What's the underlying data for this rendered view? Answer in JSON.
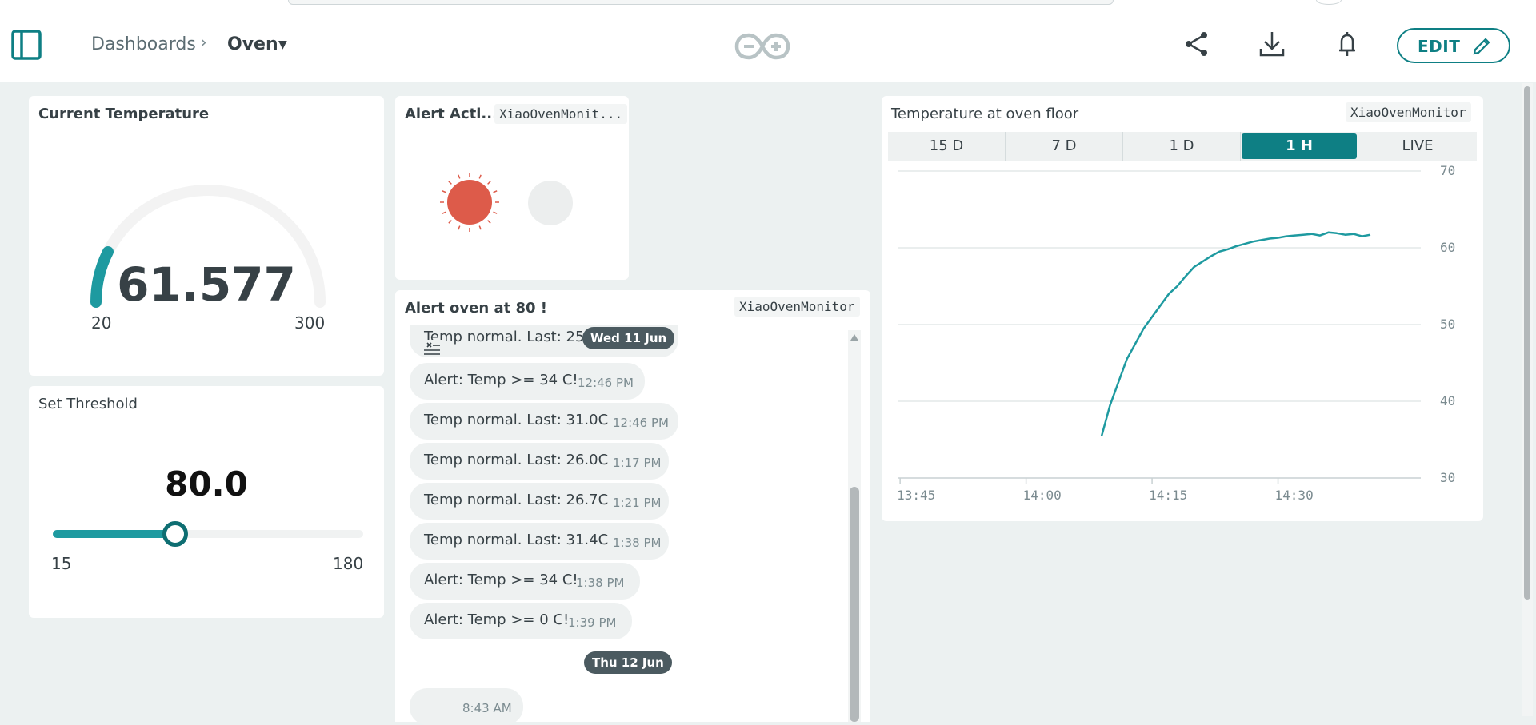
{
  "header": {
    "breadcrumb_root": "Dashboards",
    "breadcrumb_current": "Oven",
    "edit_label": "EDIT",
    "accent_color": "#0e7f84"
  },
  "icons": [
    "sidebar-toggle-icon",
    "arduino-logo-icon",
    "share-icon",
    "download-icon",
    "notification-bell-icon",
    "pencil-icon",
    "scroll-up-icon",
    "filter-messages-icon"
  ],
  "gauge": {
    "title": "Current Temperature",
    "value": "61.577",
    "min": "20",
    "max": "300",
    "value_num": 61.577,
    "min_num": 20,
    "max_num": 300
  },
  "alert_widget": {
    "title": "Alert Acti...",
    "device": "XiaoOvenMonit...",
    "active_color": "#dd5b4a"
  },
  "threshold": {
    "title": "Set Threshold",
    "value": "80.0",
    "min": "15",
    "max": "180",
    "value_num": 80,
    "min_num": 15,
    "max_num": 180
  },
  "messenger": {
    "title": "Alert oven at 80 !",
    "device": "XiaoOvenMonitor",
    "date1": "Wed 11 Jun",
    "date2": "Thu 12 Jun",
    "messages": [
      {
        "text": "Temp normal. Last: 25.",
        "time": ""
      },
      {
        "text": "Alert: Temp >= 34 C!",
        "time": "12:46 PM"
      },
      {
        "text": "Temp normal. Last: 31.0C",
        "time": "12:46 PM"
      },
      {
        "text": "Temp normal. Last: 26.0C",
        "time": "1:17 PM"
      },
      {
        "text": "Temp normal. Last: 26.7C",
        "time": "1:21 PM"
      },
      {
        "text": "Temp normal. Last: 31.4C",
        "time": "1:38 PM"
      },
      {
        "text": "Alert: Temp >= 34 C!",
        "time": "1:38 PM"
      },
      {
        "text": "Alert: Temp >= 0 C!",
        "time": "1:39 PM"
      },
      {
        "text": "",
        "time": "8:43 AM"
      }
    ]
  },
  "chart": {
    "title": "Temperature at oven floor",
    "device": "XiaoOvenMonitor",
    "tabs": [
      "15 D",
      "7 D",
      "1 D",
      "1 H",
      "LIVE"
    ],
    "active_tab": "1 H"
  },
  "chart_data": {
    "type": "line",
    "title": "Temperature at oven floor",
    "xlabel": "",
    "ylabel": "",
    "x_ticks": [
      "13:45",
      "14:00",
      "14:15",
      "14:30"
    ],
    "y_ticks": [
      30,
      40,
      50,
      60,
      70
    ],
    "ylim": [
      30,
      70
    ],
    "grid": true,
    "series": [
      {
        "color": "#1e9aa0",
        "x": [
          "14:09",
          "14:10",
          "14:11",
          "14:12",
          "14:13",
          "14:14",
          "14:15",
          "14:16",
          "14:17",
          "14:18",
          "14:19",
          "14:20",
          "14:21",
          "14:22",
          "14:23",
          "14:24",
          "14:25",
          "14:26",
          "14:27",
          "14:28",
          "14:29",
          "14:30",
          "14:31",
          "14:32",
          "14:33",
          "14:34",
          "14:35",
          "14:36",
          "14:37",
          "14:38",
          "14:39",
          "14:40",
          "14:41"
        ],
        "values": [
          35.5,
          39.5,
          42.5,
          45.5,
          47.5,
          49.5,
          51.0,
          52.5,
          54.0,
          55.0,
          56.3,
          57.5,
          58.2,
          58.9,
          59.5,
          59.8,
          60.2,
          60.5,
          60.8,
          61.0,
          61.2,
          61.3,
          61.5,
          61.6,
          61.7,
          61.8,
          61.6,
          62.0,
          61.9,
          61.7,
          61.8,
          61.5,
          61.7
        ]
      }
    ]
  }
}
